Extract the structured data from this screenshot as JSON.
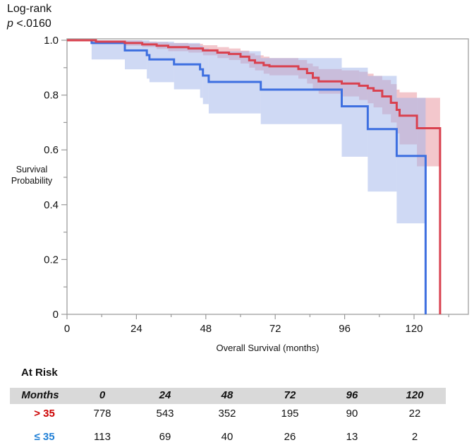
{
  "annotation": {
    "line1": "Log-rank",
    "p_label": "p",
    "p_value": "<.0160"
  },
  "chart_data": {
    "type": "line",
    "subtype": "kaplan-meier",
    "xlabel": "Overall Survival (months)",
    "ylabel_line1": "Survival",
    "ylabel_line2": "Probability",
    "xlim": [
      0,
      140
    ],
    "ylim": [
      0,
      1.0
    ],
    "xticks": [
      0,
      24,
      48,
      72,
      96,
      120
    ],
    "xtick_labels": [
      "0",
      "24",
      "48",
      "72",
      "96",
      "120"
    ],
    "yticks": [
      0,
      0.2,
      0.4,
      0.6,
      0.8,
      1.0
    ],
    "ytick_labels": [
      "0",
      "0.2",
      "0.4",
      "0.6",
      "0.8",
      "1.0"
    ],
    "grid": false,
    "series": [
      {
        "name": "> 35",
        "color": "#d9414f",
        "band_color": "#e8909a",
        "end_time": 129,
        "times": [
          0,
          10,
          20,
          26,
          31,
          35,
          42,
          47,
          52,
          56,
          60,
          63,
          65,
          68,
          70,
          80,
          83,
          85,
          87,
          95,
          101,
          104,
          106,
          109,
          112,
          114,
          115,
          121
        ],
        "survival": [
          1.0,
          0.995,
          0.99,
          0.985,
          0.98,
          0.975,
          0.97,
          0.963,
          0.955,
          0.95,
          0.94,
          0.927,
          0.918,
          0.909,
          0.905,
          0.895,
          0.88,
          0.863,
          0.85,
          0.842,
          0.834,
          0.825,
          0.816,
          0.795,
          0.772,
          0.746,
          0.725,
          0.679
        ],
        "ci_lower": [
          1.0,
          0.99,
          0.98,
          0.975,
          0.968,
          0.96,
          0.955,
          0.945,
          0.935,
          0.928,
          0.915,
          0.9,
          0.89,
          0.878,
          0.872,
          0.86,
          0.842,
          0.822,
          0.805,
          0.795,
          0.782,
          0.77,
          0.755,
          0.73,
          0.7,
          0.66,
          0.62,
          0.54
        ],
        "ci_upper": [
          1.0,
          1.0,
          1.0,
          0.995,
          0.993,
          0.99,
          0.987,
          0.982,
          0.975,
          0.97,
          0.962,
          0.952,
          0.945,
          0.94,
          0.935,
          0.928,
          0.915,
          0.905,
          0.895,
          0.89,
          0.885,
          0.878,
          0.87,
          0.855,
          0.84,
          0.82,
          0.81,
          0.79
        ]
      },
      {
        "name": "≤ 35",
        "color": "#3d6fe0",
        "band_color": "#9fb4ea",
        "end_time": 124,
        "times": [
          0,
          8.5,
          20,
          27.6,
          28.5,
          37,
          46,
          47,
          49,
          67,
          95,
          104,
          114
        ],
        "survival": [
          1.0,
          0.99,
          0.963,
          0.946,
          0.93,
          0.912,
          0.894,
          0.871,
          0.848,
          0.82,
          0.759,
          0.676,
          0.578
        ],
        "ci_lower": [
          1.0,
          0.93,
          0.894,
          0.86,
          0.847,
          0.821,
          0.79,
          0.767,
          0.733,
          0.694,
          0.575,
          0.448,
          0.332
        ],
        "ci_upper": [
          1.0,
          1.0,
          1.0,
          1.0,
          0.995,
          0.99,
          0.98,
          0.97,
          0.96,
          0.935,
          0.9,
          0.87,
          0.79
        ]
      }
    ]
  },
  "at_risk": {
    "title": "At Risk",
    "header_label": "Months",
    "months": [
      "0",
      "24",
      "48",
      "72",
      "96",
      "120"
    ],
    "rows": [
      {
        "label": "> 35",
        "color": "#cc0000",
        "values": [
          "778",
          "543",
          "352",
          "195",
          "90",
          "22"
        ]
      },
      {
        "label": "≤ 35",
        "color": "#1f7fd6",
        "values": [
          "113",
          "69",
          "40",
          "26",
          "13",
          "2"
        ]
      }
    ]
  }
}
